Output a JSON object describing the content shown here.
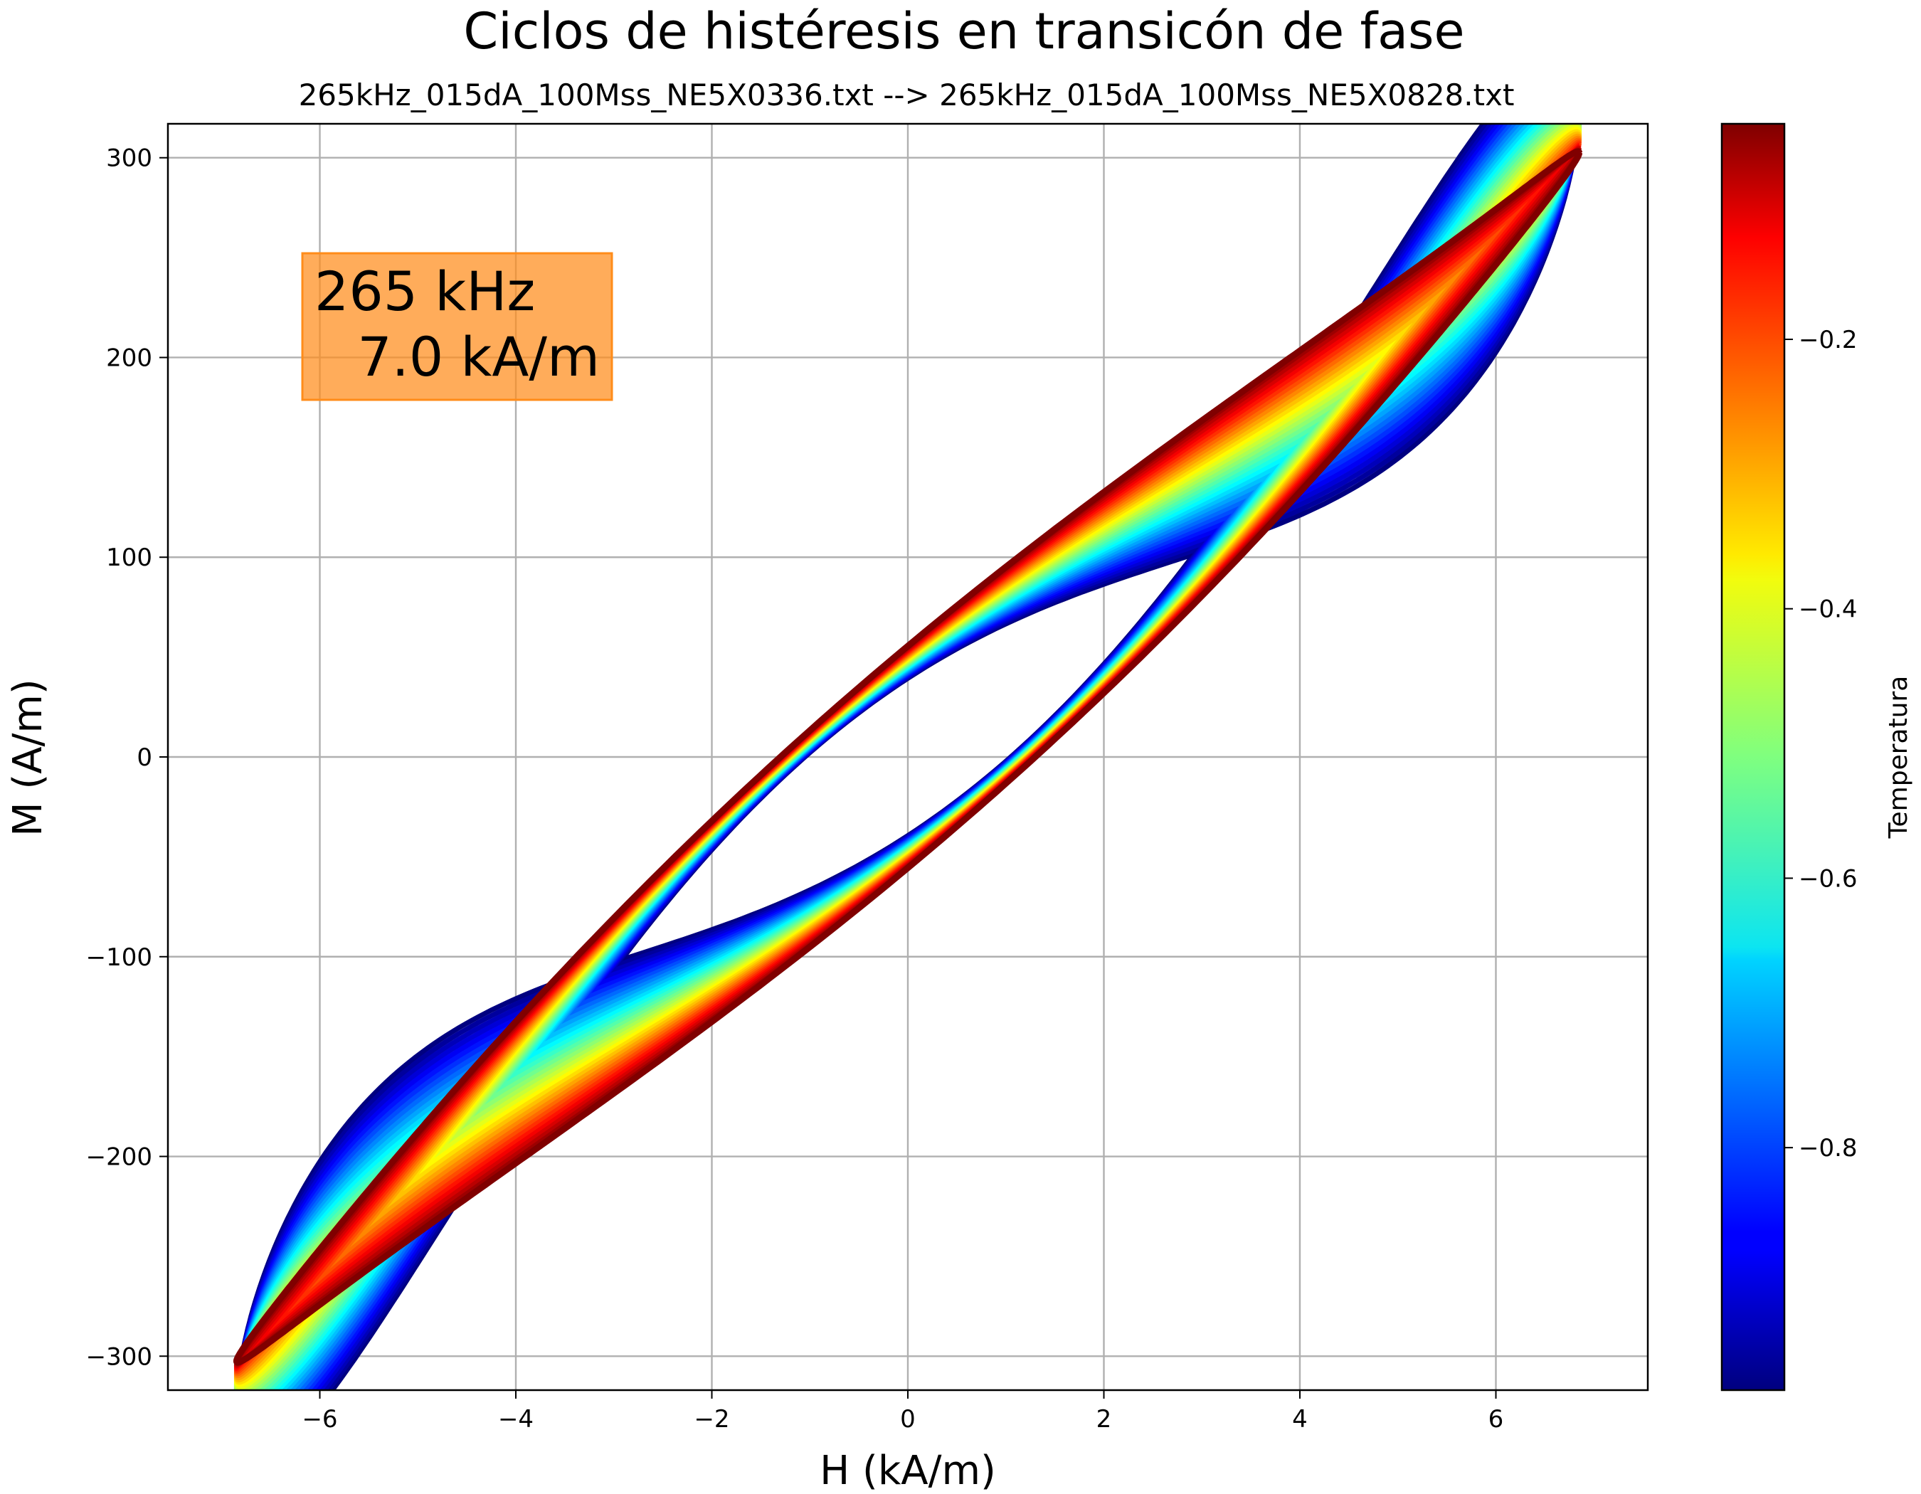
{
  "chart_data": {
    "type": "line",
    "title": "Ciclos de histéresis en transicón de fase",
    "subtitle": "265kHz_015dA_100Mss_NE5X0336.txt --> 265kHz_015dA_100Mss_NE5X0828.txt",
    "xlabel": "H (kA/m)",
    "ylabel": "M (A/m)",
    "xlim": [
      -7.55,
      7.55
    ],
    "ylim": [
      -317,
      317
    ],
    "xticks": [
      -6,
      -4,
      -2,
      0,
      2,
      4,
      6
    ],
    "yticks": [
      -300,
      -200,
      -100,
      0,
      100,
      200,
      300
    ],
    "xtick_labels": [
      "−6",
      "−4",
      "−2",
      "0",
      "2",
      "4",
      "6"
    ],
    "ytick_labels": [
      "−300",
      "−200",
      "−100",
      "0",
      "100",
      "200",
      "300"
    ],
    "grid": true,
    "colormap": "jet",
    "annotation": {
      "line1": "265 kHz",
      "line2": "7.0 kA/m",
      "box_color": "#ff8c1a"
    },
    "colorbar": {
      "label": "Temperatura",
      "range": [
        -0.98,
        -0.04
      ],
      "ticks": [
        -0.8,
        -0.6,
        -0.4,
        -0.2
      ],
      "tick_labels": [
        "−0.8",
        "−0.6",
        "−0.4",
        "−0.2"
      ]
    },
    "series": {
      "count": 36,
      "temperature_range": [
        -0.98,
        -0.04
      ],
      "H_amplitude": 6.85,
      "first_loop": {
        "Mmax": 253,
        "coercive_H": 1.05,
        "remanence_M": 45
      },
      "last_loop": {
        "Mmax": 287,
        "coercive_H": 1.3,
        "remanence_M": 57
      }
    }
  }
}
